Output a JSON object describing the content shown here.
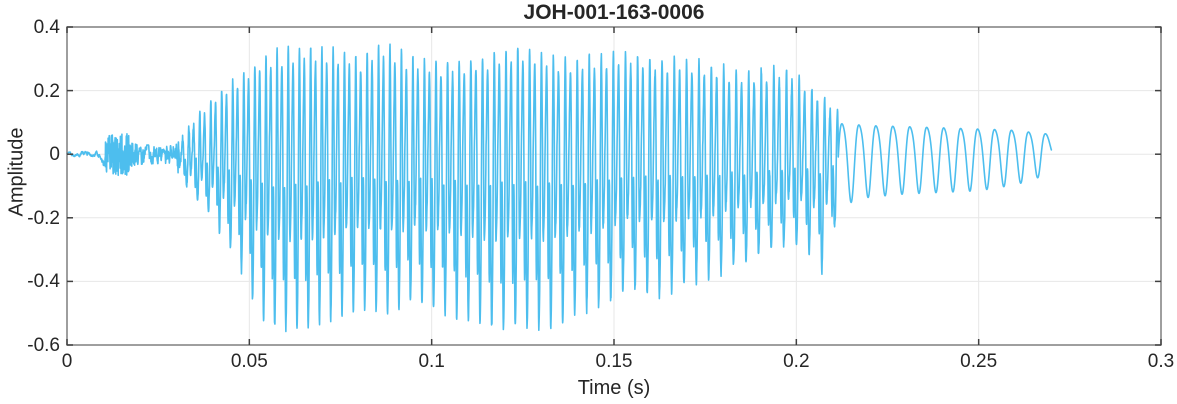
{
  "figure": {
    "title": "JOH-001-163-0006",
    "xlabel": "Time (s)",
    "ylabel": "Amplitude"
  },
  "colors": {
    "waveform": "#4DBEEE",
    "axis_box": "#7f7f7f",
    "tick_mark": "#404040",
    "grid": "#e7e7e7",
    "text": "#262626",
    "background": "#ffffff"
  },
  "chart_data": {
    "type": "line",
    "title": "JOH-001-163-0006",
    "xlabel": "Time (s)",
    "ylabel": "Amplitude",
    "xlim": [
      0,
      0.3
    ],
    "ylim": [
      -0.6,
      0.4
    ],
    "xticks": [
      0,
      0.05,
      0.1,
      0.15,
      0.2,
      0.25,
      0.3
    ],
    "xtick_labels": [
      "0",
      "0.05",
      "0.1",
      "0.15",
      "0.2",
      "0.25",
      "0.3"
    ],
    "yticks": [
      -0.6,
      -0.4,
      -0.2,
      0,
      0.2,
      0.4
    ],
    "ytick_labels": [
      "-0.6",
      "-0.4",
      "-0.2",
      "0",
      "0.2",
      "0.4"
    ],
    "grid": true,
    "legend_position": "none",
    "line_color": "#4DBEEE",
    "signal_duration_s": 0.27,
    "waveform": {
      "description": "speech-like audio waveform: silence, a small noise burst at ~0.012 s, voiced segment 0.03-0.21 s with peaks to +0.35 and troughs to -0.55, decaying sinusoid tail 0.21-0.27 s",
      "sample_step_s": 6e-05,
      "envelope_keyframes": [
        [
          0.0,
          -0.006,
          0.006
        ],
        [
          0.009,
          -0.01,
          0.01
        ],
        [
          0.0115,
          -0.072,
          0.068
        ],
        [
          0.0165,
          -0.07,
          0.065
        ],
        [
          0.019,
          -0.032,
          0.03
        ],
        [
          0.029,
          -0.028,
          0.026
        ],
        [
          0.032,
          -0.09,
          0.06
        ],
        [
          0.035,
          -0.13,
          0.11
        ],
        [
          0.038,
          -0.17,
          0.15
        ],
        [
          0.041,
          -0.22,
          0.19
        ],
        [
          0.044,
          -0.29,
          0.22
        ],
        [
          0.047,
          -0.34,
          0.24
        ],
        [
          0.05,
          -0.44,
          0.27
        ],
        [
          0.054,
          -0.52,
          0.31
        ],
        [
          0.058,
          -0.55,
          0.33
        ],
        [
          0.065,
          -0.55,
          0.34
        ],
        [
          0.072,
          -0.52,
          0.33
        ],
        [
          0.08,
          -0.48,
          0.31
        ],
        [
          0.088,
          -0.5,
          0.35
        ],
        [
          0.095,
          -0.46,
          0.3
        ],
        [
          0.103,
          -0.5,
          0.29
        ],
        [
          0.11,
          -0.52,
          0.3
        ],
        [
          0.118,
          -0.55,
          0.32
        ],
        [
          0.125,
          -0.54,
          0.34
        ],
        [
          0.132,
          -0.55,
          0.31
        ],
        [
          0.14,
          -0.5,
          0.3
        ],
        [
          0.148,
          -0.47,
          0.32
        ],
        [
          0.155,
          -0.42,
          0.32
        ],
        [
          0.162,
          -0.45,
          0.3
        ],
        [
          0.17,
          -0.41,
          0.3
        ],
        [
          0.178,
          -0.38,
          0.28
        ],
        [
          0.185,
          -0.34,
          0.26
        ],
        [
          0.192,
          -0.31,
          0.27
        ],
        [
          0.198,
          -0.28,
          0.27
        ],
        [
          0.203,
          -0.3,
          0.22
        ],
        [
          0.207,
          -0.37,
          0.18
        ],
        [
          0.21,
          -0.25,
          0.15
        ],
        [
          0.2125,
          -0.16,
          0.13
        ],
        [
          0.22,
          -0.135,
          0.12
        ],
        [
          0.23,
          -0.125,
          0.115
        ],
        [
          0.24,
          -0.12,
          0.11
        ],
        [
          0.25,
          -0.115,
          0.105
        ],
        [
          0.258,
          -0.1,
          0.1
        ],
        [
          0.264,
          -0.085,
          0.09
        ],
        [
          0.269,
          -0.06,
          0.08
        ],
        [
          0.27,
          -0.02,
          0.07
        ]
      ],
      "segments": [
        {
          "type": "noise",
          "t0": 0.0,
          "t1": 0.0105,
          "smooth_window": 9
        },
        {
          "type": "noise",
          "t0": 0.0105,
          "t1": 0.019,
          "smooth_window": 1
        },
        {
          "type": "noise",
          "t0": 0.019,
          "t1": 0.0305,
          "smooth_window": 5
        },
        {
          "type": "voiced",
          "t0": 0.0305,
          "t1": 0.2115,
          "f0_start_hz": 335,
          "f0_slope_hz_per_s": -280,
          "texture_noise": 0.012,
          "harmonics": [
            [
              0.32,
              1,
              0.0
            ],
            [
              0.55,
              2,
              2.0
            ],
            [
              0.38,
              3,
              1.1
            ],
            [
              0.22,
              4,
              2.6
            ],
            [
              0.12,
              5,
              0.5
            ],
            [
              0.08,
              6,
              1.8
            ]
          ]
        },
        {
          "type": "sine",
          "t0": 0.2115,
          "t1": 0.27,
          "freq_hz": 215,
          "harmonics": [
            [
              1.0,
              1,
              0.0
            ],
            [
              0.15,
              2,
              1.2
            ]
          ]
        }
      ]
    }
  }
}
